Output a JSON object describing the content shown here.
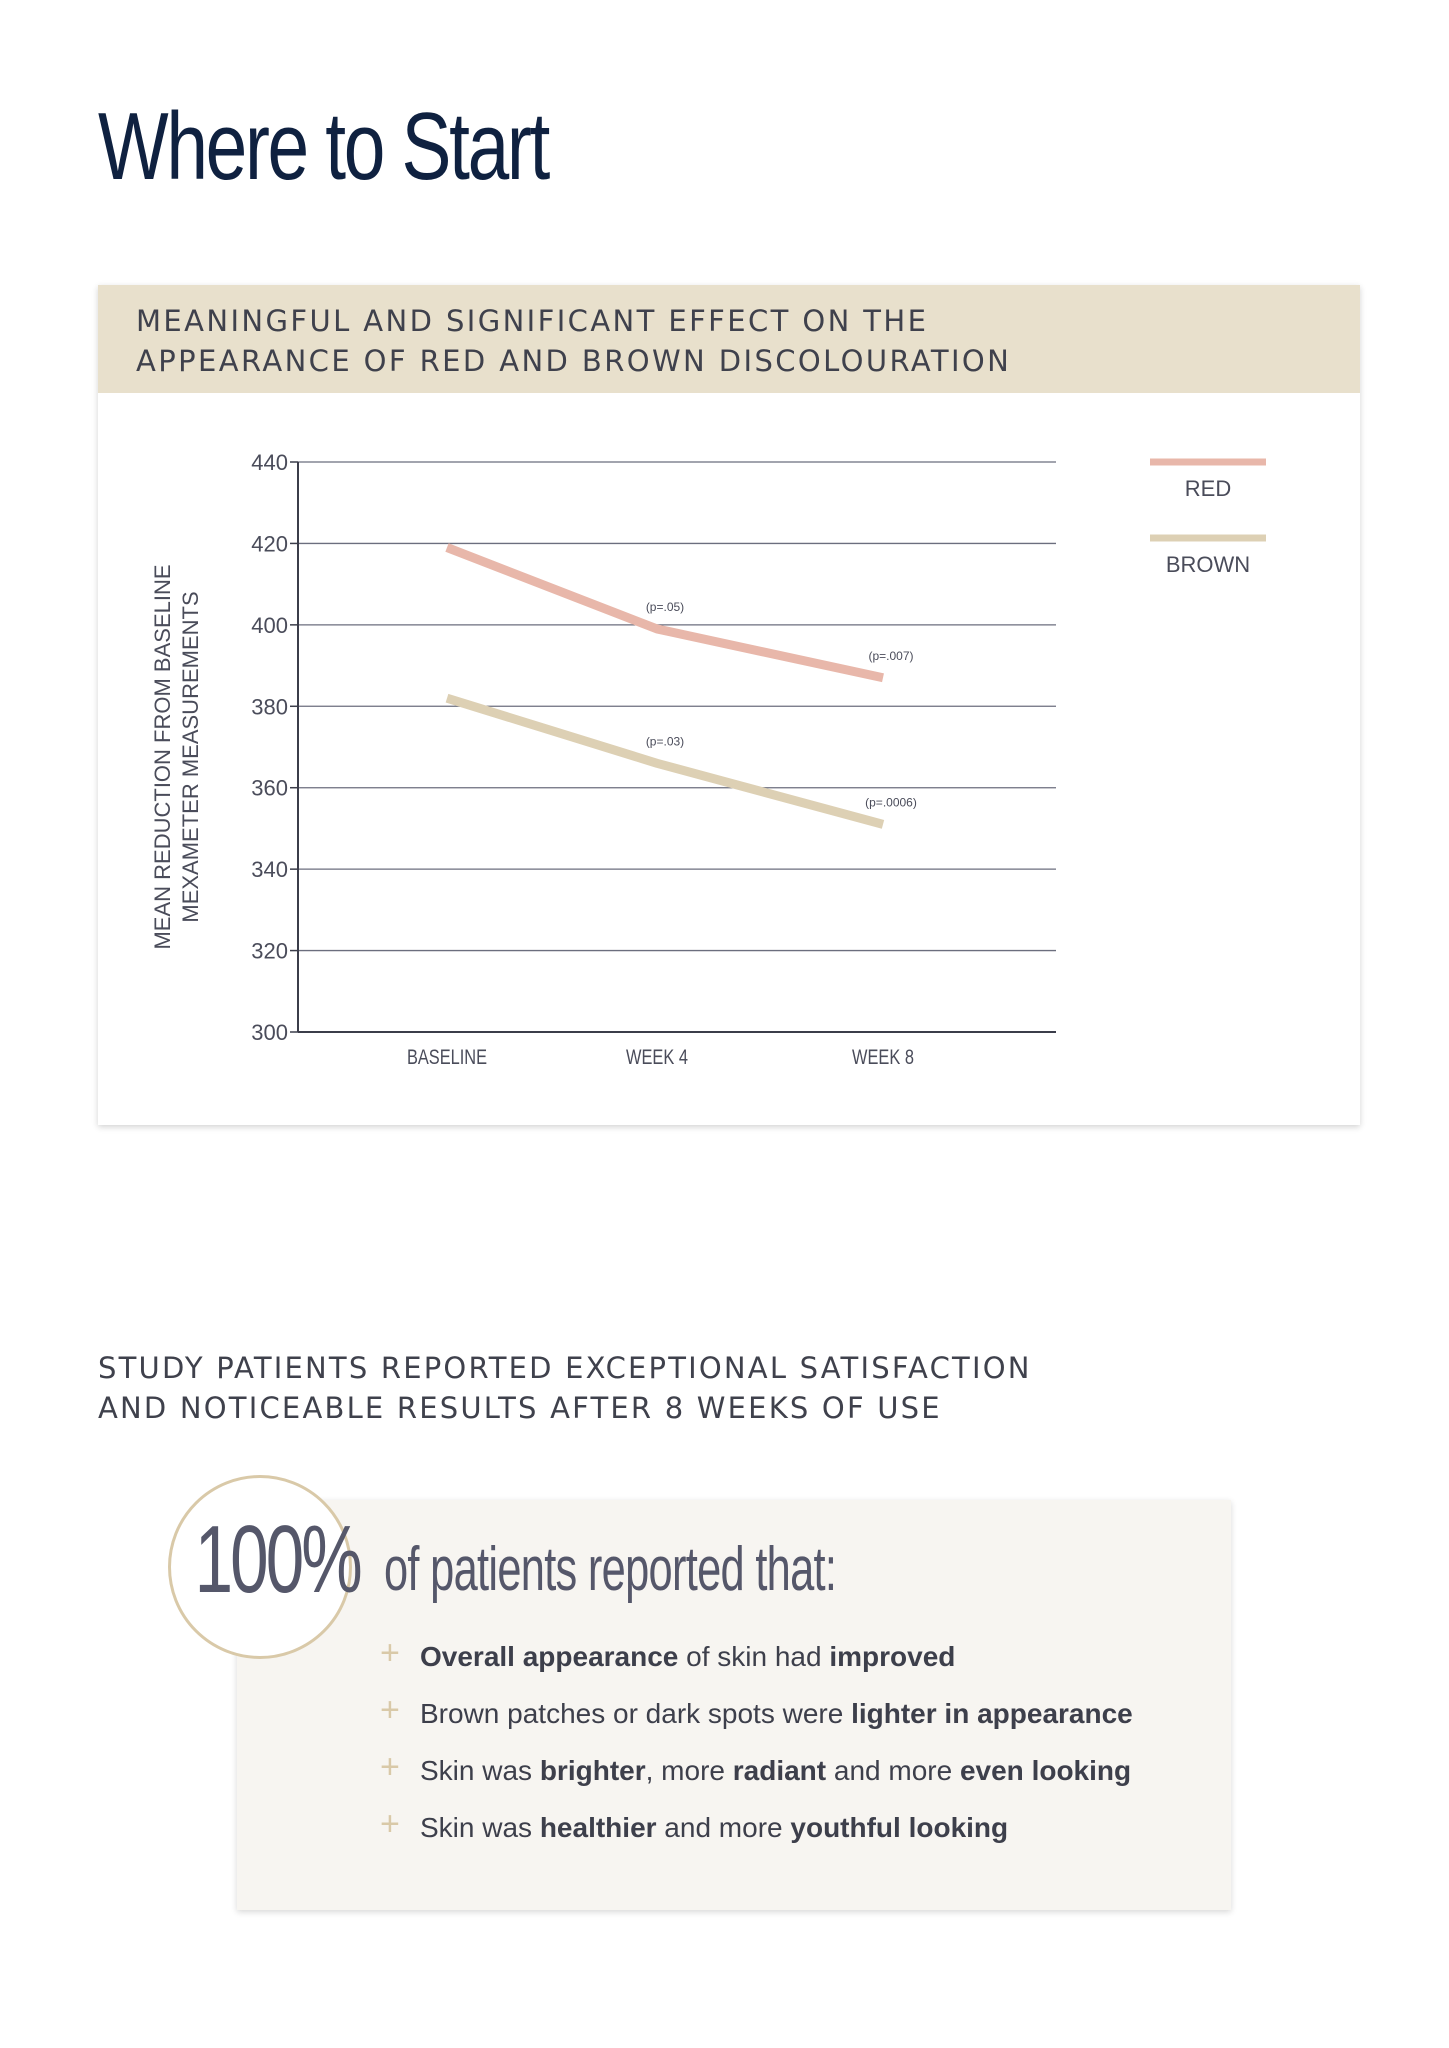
{
  "page": {
    "title": "Where to Start"
  },
  "chart_panel": {
    "heading_line1": "MEANINGFUL AND SIGNIFICANT EFFECT ON THE",
    "heading_line2": "APPEARANCE OF RED AND BROWN DISCOLOURATION"
  },
  "chart_data": {
    "type": "line",
    "title": "MEANINGFUL AND SIGNIFICANT EFFECT ON THE APPEARANCE OF RED AND BROWN DISCOLOURATION",
    "categories": [
      "BASELINE",
      "WEEK 4",
      "WEEK 8"
    ],
    "ylabel": [
      "MEAN REDUCTION FROM BASELINE",
      "MEXAMETER MEASUREMENTS"
    ],
    "xlabel": "",
    "ylim": [
      300,
      440
    ],
    "yticks": [
      300,
      320,
      340,
      360,
      380,
      400,
      420,
      440
    ],
    "grid": true,
    "legend_position": "right",
    "series": [
      {
        "name": "RED",
        "color": "#e8b7aa",
        "values": [
          419,
          399,
          387
        ],
        "annotations": [
          "",
          "(p=.05)",
          "(p=.007)"
        ]
      },
      {
        "name": "BROWN",
        "color": "#ddd0b4",
        "values": [
          382,
          366,
          351
        ],
        "annotations": [
          "",
          "(p=.03)",
          "(p=.0006)"
        ]
      }
    ]
  },
  "satisfaction": {
    "heading_line1": "STUDY PATIENTS REPORTED EXCEPTIONAL SATISFACTION",
    "heading_line2": "AND NOTICEABLE RESULTS AFTER 8 WEEKS OF USE",
    "stat_value": "100%",
    "stat_caption": "of patients reported that:",
    "items": [
      [
        {
          "t": "Overall appearance",
          "b": true
        },
        {
          "t": " of skin had ",
          "b": false
        },
        {
          "t": "improved",
          "b": true
        }
      ],
      [
        {
          "t": "Brown patches or dark spots were ",
          "b": false
        },
        {
          "t": "lighter in appearance",
          "b": true
        }
      ],
      [
        {
          "t": "Skin was ",
          "b": false
        },
        {
          "t": "brighter",
          "b": true
        },
        {
          "t": ", more ",
          "b": false
        },
        {
          "t": "radiant",
          "b": true
        },
        {
          "t": " and more ",
          "b": false
        },
        {
          "t": "even looking",
          "b": true
        }
      ],
      [
        {
          "t": "Skin was ",
          "b": false
        },
        {
          "t": "healthier",
          "b": true
        },
        {
          "t": " and more ",
          "b": false
        },
        {
          "t": "youthful looking",
          "b": true
        }
      ]
    ]
  }
}
